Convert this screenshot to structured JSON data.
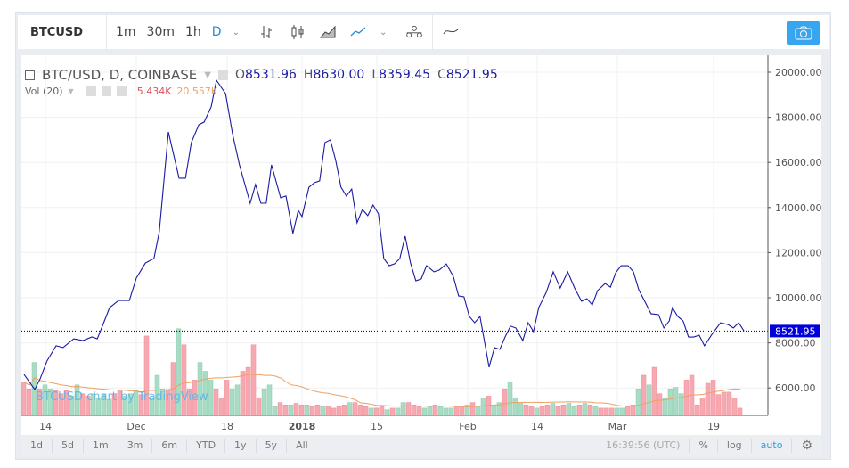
{
  "toolbar": {
    "symbol": "BTCUSD",
    "intervals": [
      "1m",
      "30m",
      "1h",
      "D"
    ],
    "active_interval": "D",
    "icons": [
      "bars-icon",
      "candles-icon",
      "area-icon",
      "line-icon",
      "indicators-icon",
      "compare-icon",
      "camera-icon"
    ]
  },
  "legend": {
    "title": "BTC/USD, D, COINBASE",
    "o_label": "O",
    "o": "8531.96",
    "h_label": "H",
    "h": "8630.00",
    "l_label": "L",
    "l": "8359.45",
    "c_label": "C",
    "c": "8521.95",
    "vol_label": "Vol (20)",
    "vol": "5.434K",
    "vol_ma": "20.557K"
  },
  "watermark": "BTCUSD chart by TradingView",
  "bottom": {
    "ranges": [
      "1d",
      "5d",
      "1m",
      "3m",
      "6m",
      "YTD",
      "1y",
      "5y",
      "All"
    ],
    "time": "16:39:56 (UTC)",
    "pct": "%",
    "log": "log",
    "auto": "auto"
  },
  "colors": {
    "line": "#1a1aa0",
    "up": "#a8dcc5",
    "down": "#f7a9b2",
    "ma": "#f0a060",
    "price_tag": "#0000dd",
    "snap": "#37a6ef"
  },
  "chart_data": {
    "type": "line",
    "title": "BTC/USD, D, COINBASE",
    "x_unit": "days from first bar",
    "ylim": [
      4600,
      20600
    ],
    "yticks": [
      6000,
      8000,
      10000,
      12000,
      14000,
      16000,
      18000,
      20000
    ],
    "ytick_labels": [
      "6000.00",
      "8000.00",
      "10000.00",
      "12000.00",
      "14000.00",
      "16000.00",
      "18000.00",
      "20000.00"
    ],
    "xticks": [
      {
        "day": 4,
        "label": "14"
      },
      {
        "day": 21,
        "label": "Dec"
      },
      {
        "day": 38,
        "label": "18"
      },
      {
        "day": 52,
        "label": "2018"
      },
      {
        "day": 66,
        "label": "15"
      },
      {
        "day": 83,
        "label": "Feb"
      },
      {
        "day": 96,
        "label": "14"
      },
      {
        "day": 111,
        "label": "Mar"
      },
      {
        "day": 129,
        "label": "19"
      }
    ],
    "last_price": 8521.95,
    "last_price_label": "8521.95",
    "close": [
      [
        0,
        6600
      ],
      [
        2,
        5930
      ],
      [
        3,
        6400
      ],
      [
        4.3,
        7200
      ],
      [
        6,
        7870
      ],
      [
        7.3,
        7790
      ],
      [
        9.3,
        8180
      ],
      [
        11,
        8100
      ],
      [
        12.7,
        8260
      ],
      [
        13.7,
        8180
      ],
      [
        14.7,
        8770
      ],
      [
        16,
        9560
      ],
      [
        17.7,
        9880
      ],
      [
        19.7,
        9880
      ],
      [
        21,
        10870
      ],
      [
        22.7,
        11540
      ],
      [
        24.3,
        11740
      ],
      [
        25.3,
        12925
      ],
      [
        27,
        17350
      ],
      [
        29,
        15300
      ],
      [
        30.2,
        15300
      ],
      [
        31.3,
        16880
      ],
      [
        32.7,
        17670
      ],
      [
        33.7,
        17790
      ],
      [
        35,
        18460
      ],
      [
        36,
        19640
      ],
      [
        37.7,
        19050
      ],
      [
        39,
        17270
      ],
      [
        40.3,
        15890
      ],
      [
        42.3,
        14190
      ],
      [
        43.3,
        15020
      ],
      [
        44.3,
        14190
      ],
      [
        45.3,
        14190
      ],
      [
        46.3,
        15890
      ],
      [
        48,
        14430
      ],
      [
        49,
        14510
      ],
      [
        50.3,
        12850
      ],
      [
        51.3,
        13870
      ],
      [
        52,
        13600
      ],
      [
        53.3,
        14900
      ],
      [
        54.3,
        15100
      ],
      [
        55.3,
        15180
      ],
      [
        56.3,
        16880
      ],
      [
        57.3,
        17000
      ],
      [
        58.3,
        16090
      ],
      [
        59.3,
        14900
      ],
      [
        60.3,
        14510
      ],
      [
        61.3,
        14820
      ],
      [
        62.3,
        13320
      ],
      [
        63.3,
        13910
      ],
      [
        64.3,
        13640
      ],
      [
        65.3,
        14110
      ],
      [
        66.3,
        13720
      ],
      [
        67.3,
        11740
      ],
      [
        68.3,
        11420
      ],
      [
        69.3,
        11500
      ],
      [
        70.3,
        11740
      ],
      [
        71.3,
        12730
      ],
      [
        72.3,
        11540
      ],
      [
        73.3,
        10750
      ],
      [
        74.3,
        10830
      ],
      [
        75.3,
        11420
      ],
      [
        76.7,
        11150
      ],
      [
        77.7,
        11230
      ],
      [
        79,
        11500
      ],
      [
        80.3,
        10950
      ],
      [
        81.3,
        10080
      ],
      [
        82.3,
        10040
      ],
      [
        83.3,
        9170
      ],
      [
        84.3,
        8890
      ],
      [
        85.3,
        9170
      ],
      [
        87,
        6920
      ],
      [
        88,
        7790
      ],
      [
        89,
        7710
      ],
      [
        90,
        8260
      ],
      [
        91,
        8740
      ],
      [
        92,
        8660
      ],
      [
        93.3,
        8100
      ],
      [
        94.3,
        8890
      ],
      [
        95.3,
        8500
      ],
      [
        96.3,
        9570
      ],
      [
        97.7,
        10240
      ],
      [
        99,
        11150
      ],
      [
        100.3,
        10430
      ],
      [
        101.7,
        11150
      ],
      [
        103,
        10430
      ],
      [
        104.3,
        9840
      ],
      [
        105.3,
        9960
      ],
      [
        106.3,
        9680
      ],
      [
        107.3,
        10320
      ],
      [
        108.7,
        10630
      ],
      [
        109.7,
        10470
      ],
      [
        110.7,
        11110
      ],
      [
        111.7,
        11420
      ],
      [
        113,
        11420
      ],
      [
        114,
        11150
      ],
      [
        115,
        10360
      ],
      [
        116.3,
        9760
      ],
      [
        117.3,
        9290
      ],
      [
        118.7,
        9250
      ],
      [
        119.7,
        8660
      ],
      [
        120.7,
        8970
      ],
      [
        121.3,
        9560
      ],
      [
        122.3,
        9170
      ],
      [
        123.3,
        8970
      ],
      [
        124.3,
        8260
      ],
      [
        125.3,
        8260
      ],
      [
        126.3,
        8340
      ],
      [
        127.3,
        7870
      ],
      [
        128.7,
        8380
      ],
      [
        130.3,
        8890
      ],
      [
        131.7,
        8810
      ],
      [
        132.7,
        8660
      ],
      [
        133.7,
        8890
      ],
      [
        134.7,
        8520
      ]
    ],
    "volume_k": [
      42,
      33,
      66,
      33,
      38,
      33,
      31,
      27,
      31,
      24,
      38,
      27,
      24,
      27,
      22,
      27,
      20,
      27,
      31,
      24,
      27,
      31,
      26,
      99,
      22,
      50,
      33,
      31,
      66,
      108,
      88,
      33,
      44,
      66,
      55,
      44,
      33,
      22,
      44,
      33,
      38,
      55,
      60,
      88,
      22,
      33,
      38,
      11,
      16,
      13,
      13,
      15,
      13,
      13,
      11,
      13,
      11,
      11,
      9,
      11,
      13,
      16,
      16,
      13,
      11,
      9,
      9,
      11,
      7,
      9,
      9,
      16,
      16,
      13,
      11,
      9,
      11,
      13,
      11,
      9,
      9,
      11,
      11,
      13,
      16,
      11,
      22,
      24,
      13,
      16,
      33,
      42,
      22,
      15,
      13,
      11,
      9,
      11,
      13,
      15,
      11,
      13,
      15,
      11,
      13,
      15,
      13,
      11,
      9,
      9,
      9,
      9,
      9,
      11,
      13,
      33,
      50,
      38,
      60,
      27,
      22,
      33,
      35,
      27,
      44,
      50,
      13,
      22,
      40,
      44,
      26,
      29,
      29,
      22,
      9
    ],
    "volume_up": "dduduuddduudduuuudduuudduuudduddduuuddduudddduuudduddudduddddudddudduduuddduuduuudduduuduuduuudduddudduudududdduuddududduuuudddddd",
    "volume_ma_period": 20
  }
}
